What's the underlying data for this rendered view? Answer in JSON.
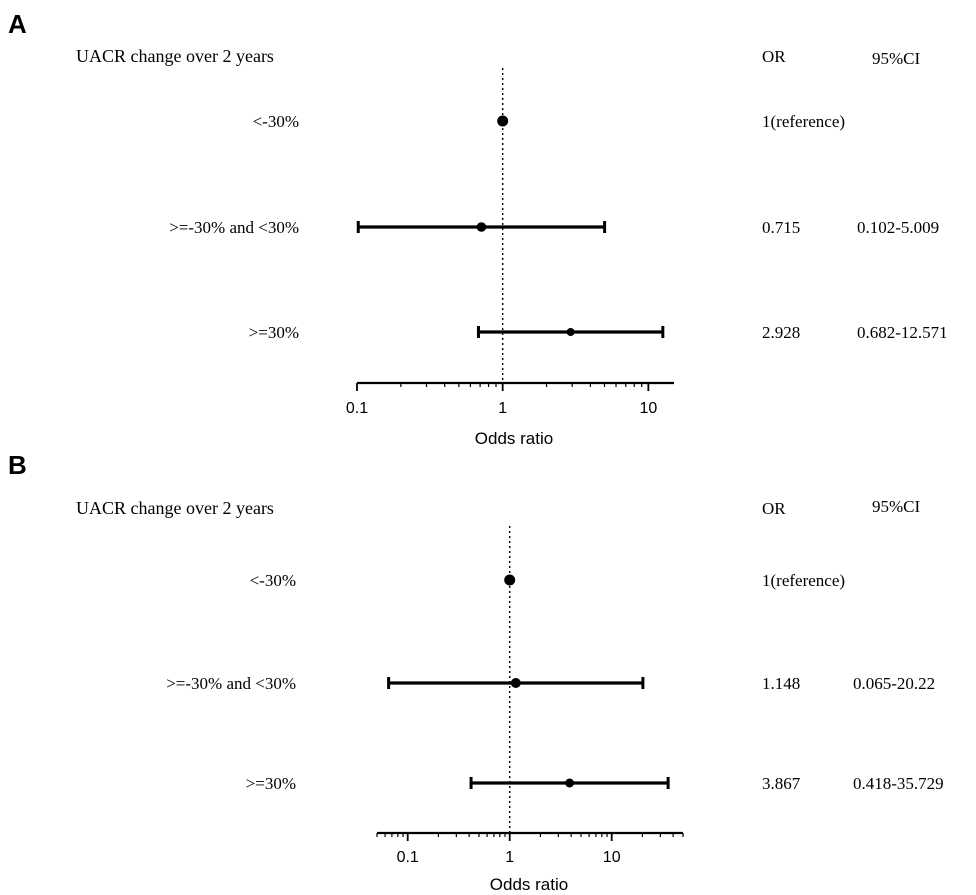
{
  "chart_data": [
    {
      "panel": "A",
      "type": "forest",
      "heading": "UACR change over 2 years",
      "col_or": "OR",
      "col_ci": "95%CI",
      "xlabel": "Odds ratio",
      "xscale": "log",
      "xlim": [
        0.1,
        15
      ],
      "xticks": [
        "0.1",
        "1",
        "10"
      ],
      "reference_line": 1,
      "rows": [
        {
          "label": "<-30%",
          "or": 1,
          "ci_low": null,
          "ci_high": null,
          "or_text": "1(reference)",
          "ci_text": ""
        },
        {
          "label": ">=-30% and <30%",
          "or": 0.715,
          "ci_low": 0.102,
          "ci_high": 5.009,
          "or_text": "0.715",
          "ci_text": "0.102-5.009"
        },
        {
          "label": ">=30%",
          "or": 2.928,
          "ci_low": 0.682,
          "ci_high": 12.571,
          "or_text": "2.928",
          "ci_text": "0.682-12.571"
        }
      ]
    },
    {
      "panel": "B",
      "type": "forest",
      "heading": "UACR change over 2 years",
      "col_or": "OR",
      "col_ci": "95%CI",
      "xlabel": "Odds ratio",
      "xscale": "log",
      "xlim": [
        0.05,
        50
      ],
      "xticks": [
        "0.1",
        "1",
        "10"
      ],
      "reference_line": 1,
      "rows": [
        {
          "label": "<-30%",
          "or": 1,
          "ci_low": null,
          "ci_high": null,
          "or_text": "1(reference)",
          "ci_text": ""
        },
        {
          "label": ">=-30% and <30%",
          "or": 1.148,
          "ci_low": 0.065,
          "ci_high": 20.22,
          "or_text": "1.148",
          "ci_text": "0.065-20.22"
        },
        {
          "label": ">=30%",
          "or": 3.867,
          "ci_low": 0.418,
          "ci_high": 35.729,
          "or_text": "3.867",
          "ci_text": "0.418-35.729"
        }
      ]
    }
  ]
}
